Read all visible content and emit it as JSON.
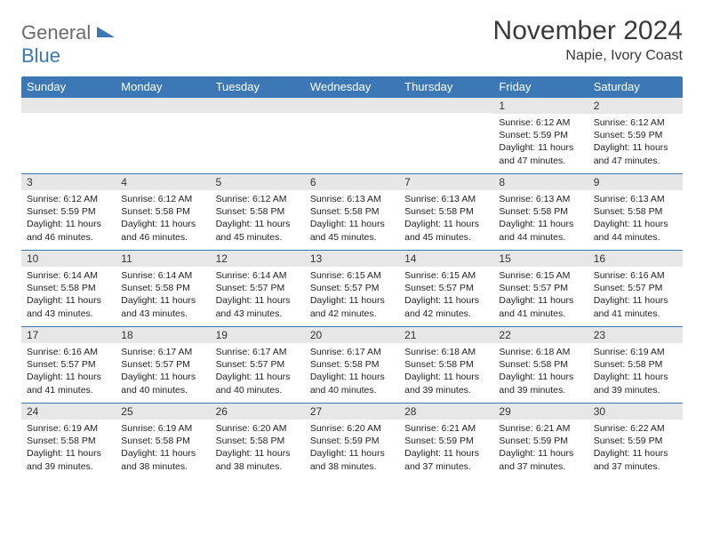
{
  "logo": {
    "main": "General",
    "sub": "Blue"
  },
  "title": "November 2024",
  "location": "Napie, Ivory Coast",
  "colors": {
    "header_bg": "#3b78b5",
    "header_text": "#ffffff",
    "daybar_bg": "#e7e7e7",
    "cell_border": "#3b78b5",
    "logo_gray": "#6b6b6b",
    "logo_blue": "#3b78b5",
    "title_color": "#3a3a3a",
    "body_text": "#222222",
    "page_bg": "#ffffff"
  },
  "typography": {
    "title_fontsize": 30,
    "location_fontsize": 16,
    "dayheader_fontsize": 13,
    "daynum_fontsize": 12,
    "body_fontsize": 10.5
  },
  "day_headers": [
    "Sunday",
    "Monday",
    "Tuesday",
    "Wednesday",
    "Thursday",
    "Friday",
    "Saturday"
  ],
  "labels": {
    "sunrise": "Sunrise:",
    "sunset": "Sunset:",
    "daylight": "Daylight:"
  },
  "weeks": [
    [
      null,
      null,
      null,
      null,
      null,
      {
        "n": "1",
        "sunrise": "6:12 AM",
        "sunset": "5:59 PM",
        "daylight": "11 hours and 47 minutes."
      },
      {
        "n": "2",
        "sunrise": "6:12 AM",
        "sunset": "5:59 PM",
        "daylight": "11 hours and 47 minutes."
      }
    ],
    [
      {
        "n": "3",
        "sunrise": "6:12 AM",
        "sunset": "5:59 PM",
        "daylight": "11 hours and 46 minutes."
      },
      {
        "n": "4",
        "sunrise": "6:12 AM",
        "sunset": "5:58 PM",
        "daylight": "11 hours and 46 minutes."
      },
      {
        "n": "5",
        "sunrise": "6:12 AM",
        "sunset": "5:58 PM",
        "daylight": "11 hours and 45 minutes."
      },
      {
        "n": "6",
        "sunrise": "6:13 AM",
        "sunset": "5:58 PM",
        "daylight": "11 hours and 45 minutes."
      },
      {
        "n": "7",
        "sunrise": "6:13 AM",
        "sunset": "5:58 PM",
        "daylight": "11 hours and 45 minutes."
      },
      {
        "n": "8",
        "sunrise": "6:13 AM",
        "sunset": "5:58 PM",
        "daylight": "11 hours and 44 minutes."
      },
      {
        "n": "9",
        "sunrise": "6:13 AM",
        "sunset": "5:58 PM",
        "daylight": "11 hours and 44 minutes."
      }
    ],
    [
      {
        "n": "10",
        "sunrise": "6:14 AM",
        "sunset": "5:58 PM",
        "daylight": "11 hours and 43 minutes."
      },
      {
        "n": "11",
        "sunrise": "6:14 AM",
        "sunset": "5:58 PM",
        "daylight": "11 hours and 43 minutes."
      },
      {
        "n": "12",
        "sunrise": "6:14 AM",
        "sunset": "5:57 PM",
        "daylight": "11 hours and 43 minutes."
      },
      {
        "n": "13",
        "sunrise": "6:15 AM",
        "sunset": "5:57 PM",
        "daylight": "11 hours and 42 minutes."
      },
      {
        "n": "14",
        "sunrise": "6:15 AM",
        "sunset": "5:57 PM",
        "daylight": "11 hours and 42 minutes."
      },
      {
        "n": "15",
        "sunrise": "6:15 AM",
        "sunset": "5:57 PM",
        "daylight": "11 hours and 41 minutes."
      },
      {
        "n": "16",
        "sunrise": "6:16 AM",
        "sunset": "5:57 PM",
        "daylight": "11 hours and 41 minutes."
      }
    ],
    [
      {
        "n": "17",
        "sunrise": "6:16 AM",
        "sunset": "5:57 PM",
        "daylight": "11 hours and 41 minutes."
      },
      {
        "n": "18",
        "sunrise": "6:17 AM",
        "sunset": "5:57 PM",
        "daylight": "11 hours and 40 minutes."
      },
      {
        "n": "19",
        "sunrise": "6:17 AM",
        "sunset": "5:57 PM",
        "daylight": "11 hours and 40 minutes."
      },
      {
        "n": "20",
        "sunrise": "6:17 AM",
        "sunset": "5:58 PM",
        "daylight": "11 hours and 40 minutes."
      },
      {
        "n": "21",
        "sunrise": "6:18 AM",
        "sunset": "5:58 PM",
        "daylight": "11 hours and 39 minutes."
      },
      {
        "n": "22",
        "sunrise": "6:18 AM",
        "sunset": "5:58 PM",
        "daylight": "11 hours and 39 minutes."
      },
      {
        "n": "23",
        "sunrise": "6:19 AM",
        "sunset": "5:58 PM",
        "daylight": "11 hours and 39 minutes."
      }
    ],
    [
      {
        "n": "24",
        "sunrise": "6:19 AM",
        "sunset": "5:58 PM",
        "daylight": "11 hours and 39 minutes."
      },
      {
        "n": "25",
        "sunrise": "6:19 AM",
        "sunset": "5:58 PM",
        "daylight": "11 hours and 38 minutes."
      },
      {
        "n": "26",
        "sunrise": "6:20 AM",
        "sunset": "5:58 PM",
        "daylight": "11 hours and 38 minutes."
      },
      {
        "n": "27",
        "sunrise": "6:20 AM",
        "sunset": "5:59 PM",
        "daylight": "11 hours and 38 minutes."
      },
      {
        "n": "28",
        "sunrise": "6:21 AM",
        "sunset": "5:59 PM",
        "daylight": "11 hours and 37 minutes."
      },
      {
        "n": "29",
        "sunrise": "6:21 AM",
        "sunset": "5:59 PM",
        "daylight": "11 hours and 37 minutes."
      },
      {
        "n": "30",
        "sunrise": "6:22 AM",
        "sunset": "5:59 PM",
        "daylight": "11 hours and 37 minutes."
      }
    ]
  ]
}
